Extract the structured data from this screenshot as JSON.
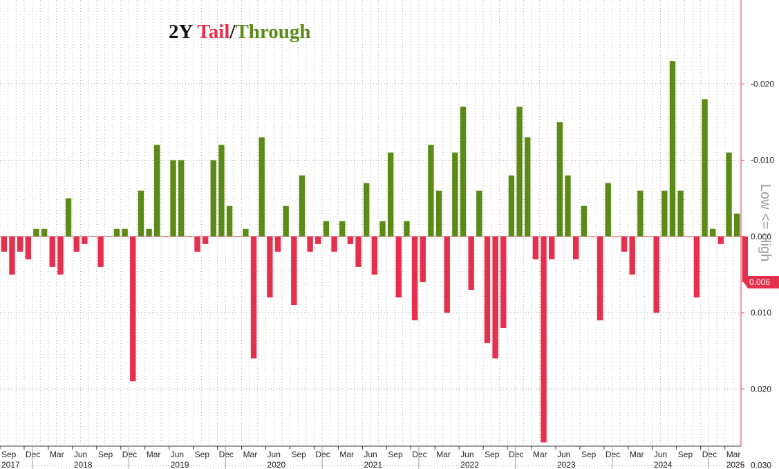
{
  "chart_data": {
    "type": "bar",
    "title_parts": {
      "tenor": "2Y",
      "tail": "Tail",
      "separator": "/",
      "through": "Through"
    },
    "ylabel": "Low <= High",
    "y_inverted": true,
    "ylim": [
      -0.031,
      0.0275
    ],
    "yticks": [
      "-0.020",
      "-0.010",
      "0.000",
      "0.010",
      "0.020",
      "0.030"
    ],
    "ytick_values": [
      -0.02,
      -0.01,
      0.0,
      0.01,
      0.02,
      0.03
    ],
    "last_value_label": "0.006",
    "colors": {
      "tail": "#e5304d",
      "through": "#5b8a17",
      "accent": "#e5304d",
      "title_dark": "#111111"
    },
    "grid": true,
    "first_month": "2017-09",
    "last_month": "2025-04",
    "x_tick_labels": [
      {
        "month": "2017-09",
        "label": "Sep",
        "year": "2017"
      },
      {
        "month": "2017-12",
        "label": "Dec"
      },
      {
        "month": "2018-03",
        "label": "Mar"
      },
      {
        "month": "2018-06",
        "label": "Jun",
        "year": "2018"
      },
      {
        "month": "2018-09",
        "label": "Sep"
      },
      {
        "month": "2018-12",
        "label": "Dec"
      },
      {
        "month": "2019-03",
        "label": "Mar"
      },
      {
        "month": "2019-06",
        "label": "Jun",
        "year": "2019"
      },
      {
        "month": "2019-09",
        "label": "Sep"
      },
      {
        "month": "2019-12",
        "label": "Dec"
      },
      {
        "month": "2020-03",
        "label": "Mar"
      },
      {
        "month": "2020-06",
        "label": "Jun",
        "year": "2020"
      },
      {
        "month": "2020-09",
        "label": "Sep"
      },
      {
        "month": "2020-12",
        "label": "Dec"
      },
      {
        "month": "2021-03",
        "label": "Mar"
      },
      {
        "month": "2021-06",
        "label": "Jun",
        "year": "2021"
      },
      {
        "month": "2021-09",
        "label": "Sep"
      },
      {
        "month": "2021-12",
        "label": "Dec"
      },
      {
        "month": "2022-03",
        "label": "Mar"
      },
      {
        "month": "2022-06",
        "label": "Jun",
        "year": "2022"
      },
      {
        "month": "2022-09",
        "label": "Sep"
      },
      {
        "month": "2022-12",
        "label": "Dec"
      },
      {
        "month": "2023-03",
        "label": "Mar"
      },
      {
        "month": "2023-06",
        "label": "Jun",
        "year": "2023"
      },
      {
        "month": "2023-09",
        "label": "Sep"
      },
      {
        "month": "2023-12",
        "label": "Dec"
      },
      {
        "month": "2024-03",
        "label": "Mar"
      },
      {
        "month": "2024-06",
        "label": "Jun",
        "year": "2024"
      },
      {
        "month": "2024-09",
        "label": "Sep"
      },
      {
        "month": "2024-12",
        "label": "Dec"
      },
      {
        "month": "2025-03",
        "label": "Mar",
        "year": "2025"
      }
    ],
    "series": [
      {
        "values": [
          0.002,
          0.005,
          0.002,
          0.003,
          -0.001,
          -0.001,
          0.004,
          0.005,
          -0.005,
          0.002,
          0.001,
          0.0,
          0.004,
          0.0,
          -0.001,
          -0.001,
          0.019,
          -0.006,
          -0.001,
          -0.012,
          0.0,
          -0.01,
          -0.01,
          0.0,
          0.002,
          0.001,
          -0.01,
          -0.012,
          -0.004,
          0.0,
          -0.001,
          0.016,
          -0.013,
          0.008,
          0.002,
          -0.004,
          0.009,
          -0.008,
          0.002,
          0.001,
          -0.002,
          0.002,
          -0.002,
          0.001,
          0.004,
          -0.007,
          0.005,
          -0.002,
          -0.011,
          0.008,
          -0.002,
          0.011,
          0.006,
          -0.012,
          -0.006,
          0.01,
          -0.011,
          -0.017,
          0.007,
          -0.006,
          0.014,
          0.016,
          0.012,
          -0.008,
          -0.017,
          -0.013,
          0.003,
          0.027,
          0.003,
          -0.015,
          -0.008,
          0.003,
          -0.004,
          0.0,
          0.011,
          -0.007,
          0.0,
          0.002,
          0.005,
          -0.006,
          0.0,
          0.01,
          -0.006,
          -0.023,
          -0.006,
          0.0,
          0.008,
          -0.018,
          -0.001,
          0.001,
          -0.011,
          -0.003,
          0.006
        ]
      }
    ]
  }
}
